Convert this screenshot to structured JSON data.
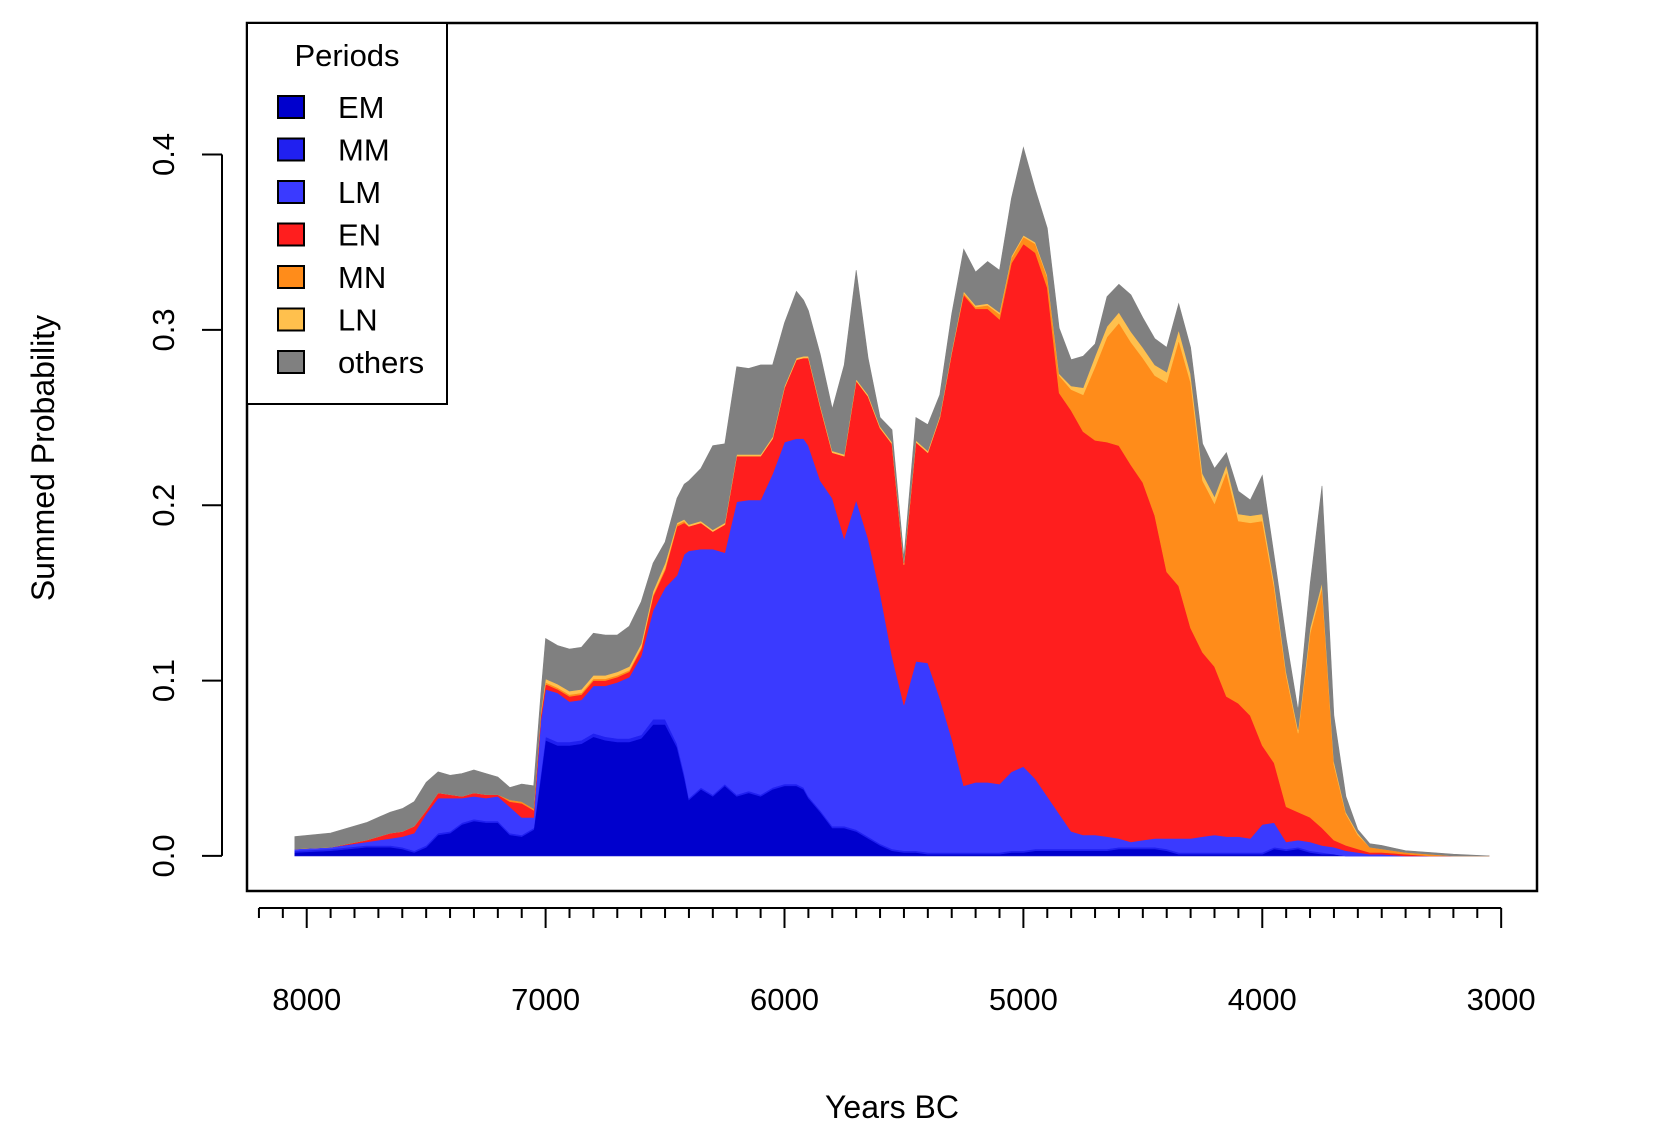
{
  "chart_data": {
    "type": "area",
    "stacked": true,
    "title": "",
    "xlabel": "Years BC",
    "ylabel": "Summed Probability",
    "xlim": [
      8250,
      2850
    ],
    "ylim": [
      -0.02,
      0.475
    ],
    "x_ticks_major": [
      8000,
      7000,
      6000,
      5000,
      4000,
      3000
    ],
    "x_tick_labels": [
      "8000",
      "7000",
      "6000",
      "5000",
      "4000",
      "3000"
    ],
    "x_ticks_minor_step": 100,
    "x_ticks_minor_range": [
      8200,
      3000
    ],
    "y_ticks": [
      0.0,
      0.1,
      0.2,
      0.3,
      0.4
    ],
    "y_tick_labels": [
      "0.0",
      "0.1",
      "0.2",
      "0.3",
      "0.4"
    ],
    "legend": {
      "title": "Periods",
      "position": "top-left",
      "entries": [
        "EM",
        "MM",
        "LM",
        "EN",
        "MN",
        "LN",
        "others"
      ]
    },
    "x": [
      8050,
      7900,
      7750,
      7650,
      7600,
      7550,
      7500,
      7450,
      7400,
      7350,
      7300,
      7250,
      7200,
      7150,
      7100,
      7050,
      7020,
      7000,
      6950,
      6900,
      6850,
      6800,
      6750,
      6700,
      6650,
      6600,
      6550,
      6500,
      6450,
      6420,
      6400,
      6350,
      6300,
      6250,
      6200,
      6150,
      6100,
      6050,
      6000,
      5950,
      5920,
      5900,
      5850,
      5800,
      5750,
      5700,
      5650,
      5600,
      5550,
      5500,
      5450,
      5400,
      5350,
      5300,
      5250,
      5200,
      5150,
      5100,
      5050,
      5000,
      4950,
      4900,
      4850,
      4800,
      4750,
      4700,
      4650,
      4600,
      4550,
      4500,
      4450,
      4400,
      4350,
      4300,
      4250,
      4200,
      4150,
      4100,
      4050,
      4000,
      3950,
      3900,
      3850,
      3800,
      3750,
      3700,
      3650,
      3600,
      3550,
      3500,
      3400,
      3300,
      3200,
      3050
    ],
    "series": [
      {
        "name": "EM",
        "color": "#0000CD",
        "values": [
          0.002,
          0.003,
          0.005,
          0.005,
          0.004,
          0.002,
          0.005,
          0.012,
          0.013,
          0.018,
          0.02,
          0.019,
          0.019,
          0.012,
          0.011,
          0.015,
          0.045,
          0.066,
          0.063,
          0.063,
          0.064,
          0.068,
          0.066,
          0.065,
          0.065,
          0.067,
          0.075,
          0.075,
          0.062,
          0.045,
          0.032,
          0.038,
          0.034,
          0.04,
          0.034,
          0.036,
          0.034,
          0.038,
          0.04,
          0.04,
          0.038,
          0.033,
          0.025,
          0.016,
          0.016,
          0.014,
          0.01,
          0.006,
          0.003,
          0.002,
          0.002,
          0.001,
          0.001,
          0.001,
          0.001,
          0.001,
          0.001,
          0.001,
          0.002,
          0.002,
          0.003,
          0.003,
          0.003,
          0.003,
          0.003,
          0.003,
          0.003,
          0.004,
          0.004,
          0.004,
          0.004,
          0.003,
          0.001,
          0.001,
          0.001,
          0.001,
          0.001,
          0.001,
          0.001,
          0.001,
          0.004,
          0.003,
          0.004,
          0.002,
          0.001,
          0.001,
          0.0,
          0.0,
          0.0,
          0.0,
          0.0,
          0.0,
          0.0,
          0.0
        ]
      },
      {
        "name": "MM",
        "color": "#2020F0",
        "values": [
          0.001,
          0.001,
          0.001,
          0.001,
          0.001,
          0.001,
          0.001,
          0.001,
          0.001,
          0.001,
          0.001,
          0.001,
          0.001,
          0.001,
          0.001,
          0.001,
          0.002,
          0.002,
          0.002,
          0.002,
          0.002,
          0.002,
          0.002,
          0.002,
          0.002,
          0.002,
          0.003,
          0.003,
          0.002,
          0.002,
          0.001,
          0.001,
          0.001,
          0.001,
          0.001,
          0.001,
          0.001,
          0.001,
          0.001,
          0.001,
          0.001,
          0.001,
          0.001,
          0.001,
          0.001,
          0.001,
          0.001,
          0.001,
          0.001,
          0.001,
          0.001,
          0.001,
          0.001,
          0.001,
          0.001,
          0.001,
          0.001,
          0.001,
          0.001,
          0.001,
          0.001,
          0.001,
          0.001,
          0.001,
          0.001,
          0.001,
          0.001,
          0.001,
          0.001,
          0.001,
          0.001,
          0.001,
          0.001,
          0.001,
          0.001,
          0.001,
          0.001,
          0.001,
          0.001,
          0.001,
          0.001,
          0.001,
          0.001,
          0.001,
          0.001,
          0.0,
          0.0,
          0.0,
          0.0,
          0.0,
          0.0,
          0.0,
          0.0,
          0.0
        ]
      },
      {
        "name": "LM",
        "color": "#3A3AFF",
        "values": [
          0.001,
          0.001,
          0.002,
          0.004,
          0.006,
          0.01,
          0.018,
          0.02,
          0.019,
          0.014,
          0.013,
          0.013,
          0.014,
          0.015,
          0.01,
          0.006,
          0.03,
          0.027,
          0.028,
          0.023,
          0.023,
          0.027,
          0.029,
          0.032,
          0.035,
          0.045,
          0.062,
          0.075,
          0.096,
          0.125,
          0.141,
          0.136,
          0.14,
          0.132,
          0.167,
          0.166,
          0.168,
          0.179,
          0.195,
          0.197,
          0.199,
          0.2,
          0.188,
          0.187,
          0.164,
          0.188,
          0.17,
          0.143,
          0.11,
          0.083,
          0.108,
          0.108,
          0.088,
          0.065,
          0.038,
          0.04,
          0.04,
          0.039,
          0.045,
          0.048,
          0.04,
          0.03,
          0.02,
          0.01,
          0.008,
          0.008,
          0.007,
          0.005,
          0.003,
          0.004,
          0.005,
          0.006,
          0.008,
          0.008,
          0.009,
          0.01,
          0.009,
          0.009,
          0.008,
          0.016,
          0.014,
          0.004,
          0.004,
          0.005,
          0.004,
          0.004,
          0.003,
          0.002,
          0.001,
          0.001,
          0.0,
          0.0,
          0.0,
          0.0
        ]
      },
      {
        "name": "EN",
        "color": "#FF1E1E",
        "values": [
          0.0,
          0.0,
          0.001,
          0.003,
          0.003,
          0.004,
          0.002,
          0.003,
          0.002,
          0.001,
          0.002,
          0.002,
          0.001,
          0.003,
          0.008,
          0.004,
          0.003,
          0.003,
          0.002,
          0.003,
          0.003,
          0.003,
          0.003,
          0.003,
          0.003,
          0.004,
          0.008,
          0.01,
          0.028,
          0.018,
          0.014,
          0.015,
          0.01,
          0.016,
          0.026,
          0.025,
          0.025,
          0.02,
          0.031,
          0.045,
          0.046,
          0.05,
          0.042,
          0.026,
          0.047,
          0.068,
          0.081,
          0.094,
          0.121,
          0.08,
          0.125,
          0.12,
          0.16,
          0.22,
          0.28,
          0.27,
          0.27,
          0.265,
          0.29,
          0.298,
          0.3,
          0.29,
          0.24,
          0.24,
          0.23,
          0.225,
          0.225,
          0.224,
          0.215,
          0.204,
          0.184,
          0.152,
          0.144,
          0.12,
          0.105,
          0.096,
          0.08,
          0.076,
          0.07,
          0.045,
          0.034,
          0.02,
          0.016,
          0.014,
          0.01,
          0.004,
          0.003,
          0.002,
          0.001,
          0.001,
          0.001,
          0.0,
          0.0,
          0.0
        ]
      },
      {
        "name": "MN",
        "color": "#FF8C1A",
        "values": [
          0.0,
          0.0,
          0.0,
          0.0,
          0.0,
          0.0,
          0.0,
          0.0,
          0.0,
          0.0,
          0.0,
          0.0,
          0.0,
          0.001,
          0.001,
          0.001,
          0.001,
          0.001,
          0.001,
          0.001,
          0.001,
          0.001,
          0.001,
          0.001,
          0.001,
          0.001,
          0.001,
          0.001,
          0.001,
          0.001,
          0.0,
          0.0,
          0.0,
          0.0,
          0.0,
          0.0,
          0.0,
          0.0,
          0.0,
          0.0,
          0.0,
          0.0,
          0.0,
          0.0,
          0.0,
          0.0,
          0.0,
          0.0,
          0.0,
          0.0,
          0.0,
          0.0,
          0.0,
          0.0,
          0.001,
          0.001,
          0.002,
          0.003,
          0.003,
          0.004,
          0.005,
          0.006,
          0.01,
          0.012,
          0.021,
          0.042,
          0.06,
          0.07,
          0.07,
          0.071,
          0.08,
          0.108,
          0.14,
          0.14,
          0.098,
          0.093,
          0.128,
          0.104,
          0.11,
          0.128,
          0.1,
          0.075,
          0.045,
          0.105,
          0.137,
          0.043,
          0.018,
          0.008,
          0.003,
          0.002,
          0.001,
          0.001,
          0.0,
          0.0
        ]
      },
      {
        "name": "LN",
        "color": "#FFC04D",
        "values": [
          0.0,
          0.0,
          0.0,
          0.0,
          0.0,
          0.0,
          0.0,
          0.0,
          0.0,
          0.0,
          0.0,
          0.0,
          0.0,
          0.0,
          0.0,
          0.0,
          0.001,
          0.002,
          0.002,
          0.002,
          0.002,
          0.002,
          0.002,
          0.002,
          0.002,
          0.002,
          0.002,
          0.003,
          0.001,
          0.001,
          0.001,
          0.001,
          0.001,
          0.001,
          0.001,
          0.001,
          0.001,
          0.001,
          0.001,
          0.001,
          0.001,
          0.001,
          0.001,
          0.001,
          0.001,
          0.001,
          0.001,
          0.001,
          0.001,
          0.001,
          0.001,
          0.001,
          0.001,
          0.001,
          0.001,
          0.001,
          0.001,
          0.001,
          0.001,
          0.001,
          0.001,
          0.001,
          0.001,
          0.002,
          0.004,
          0.006,
          0.006,
          0.006,
          0.006,
          0.006,
          0.006,
          0.006,
          0.006,
          0.005,
          0.004,
          0.004,
          0.004,
          0.004,
          0.004,
          0.004,
          0.003,
          0.002,
          0.002,
          0.003,
          0.003,
          0.002,
          0.001,
          0.001,
          0.0,
          0.0,
          0.0,
          0.0,
          0.0,
          0.0
        ]
      },
      {
        "name": "others",
        "color": "#808080",
        "values": [
          0.007,
          0.008,
          0.01,
          0.012,
          0.013,
          0.014,
          0.016,
          0.012,
          0.011,
          0.013,
          0.013,
          0.012,
          0.01,
          0.007,
          0.01,
          0.013,
          0.01,
          0.023,
          0.022,
          0.024,
          0.024,
          0.024,
          0.023,
          0.021,
          0.023,
          0.024,
          0.016,
          0.012,
          0.014,
          0.02,
          0.025,
          0.03,
          0.048,
          0.045,
          0.05,
          0.049,
          0.051,
          0.041,
          0.036,
          0.038,
          0.032,
          0.026,
          0.029,
          0.024,
          0.051,
          0.062,
          0.021,
          0.005,
          0.007,
          0.003,
          0.013,
          0.015,
          0.012,
          0.021,
          0.024,
          0.019,
          0.024,
          0.024,
          0.033,
          0.05,
          0.03,
          0.027,
          0.026,
          0.015,
          0.018,
          0.007,
          0.017,
          0.016,
          0.021,
          0.017,
          0.015,
          0.014,
          0.015,
          0.015,
          0.017,
          0.016,
          0.007,
          0.013,
          0.009,
          0.022,
          0.015,
          0.019,
          0.011,
          0.025,
          0.055,
          0.026,
          0.009,
          0.002,
          0.002,
          0.002,
          0.001,
          0.001,
          0.001,
          0.0
        ]
      }
    ]
  }
}
